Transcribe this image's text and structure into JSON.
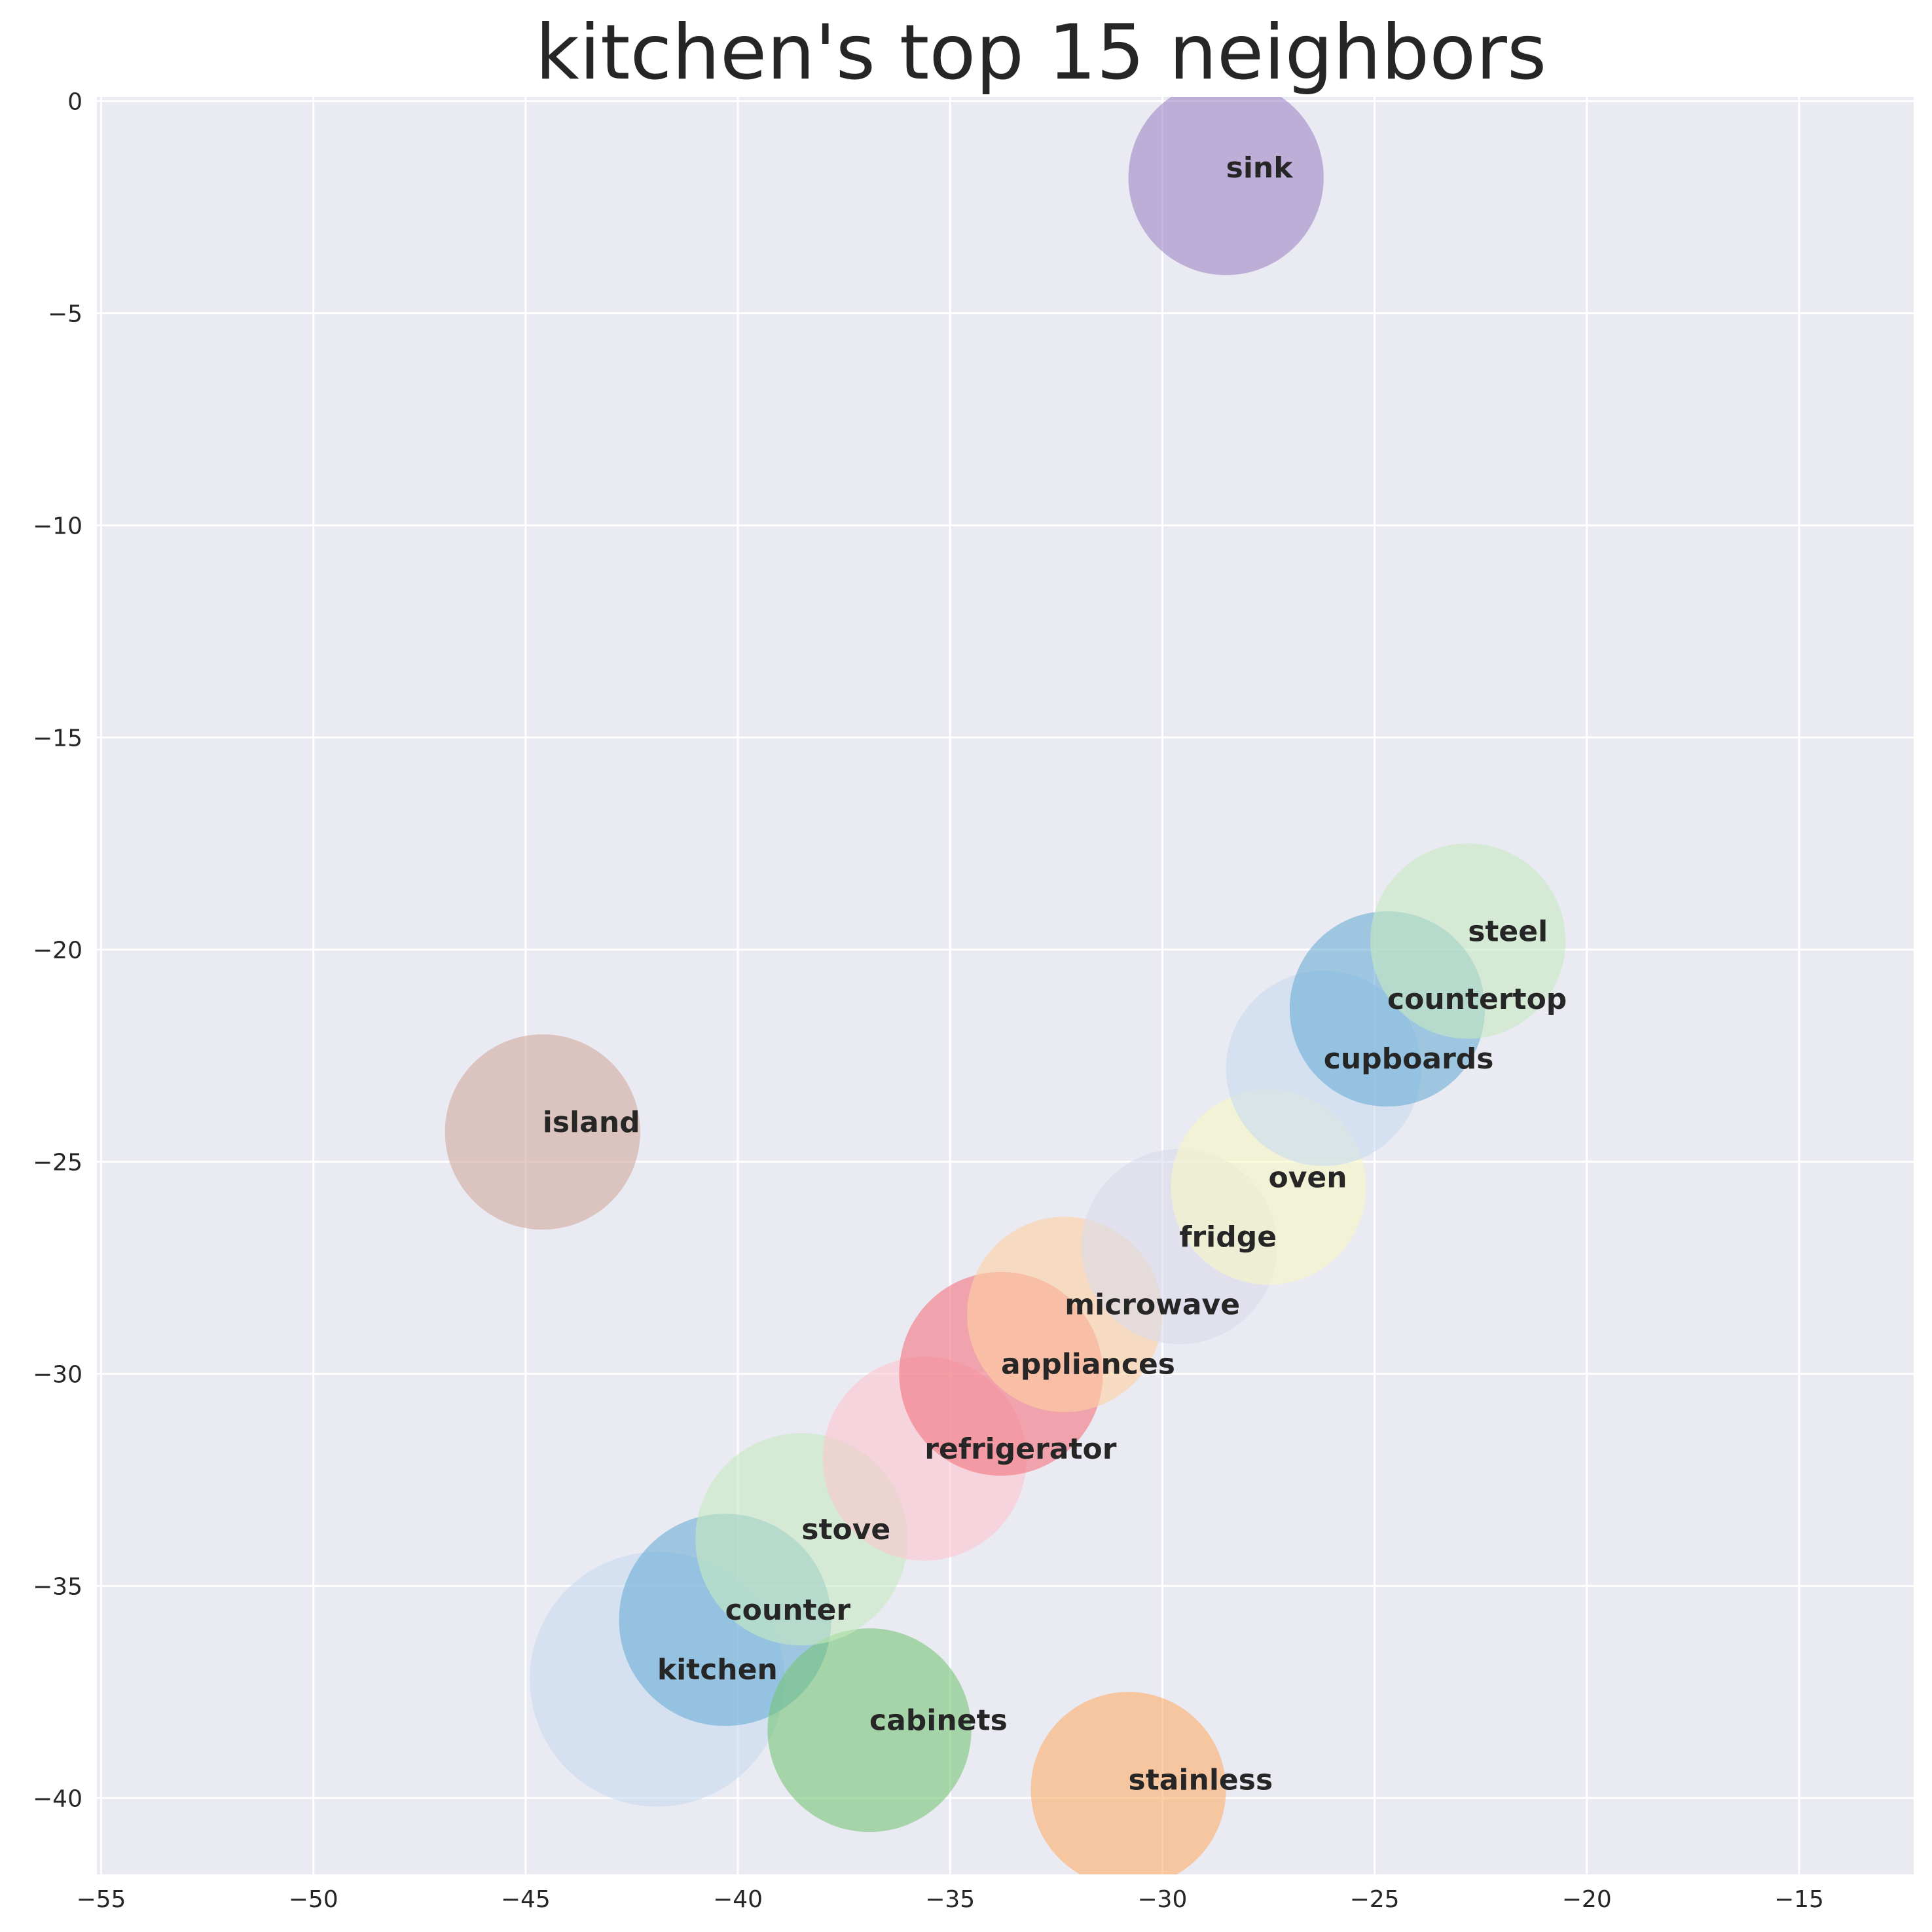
{
  "chart_data": {
    "type": "scatter",
    "title": "kitchen's top 15 neighbors",
    "xlabel": "",
    "ylabel": "",
    "xlim": [
      -55.1,
      -12.3
    ],
    "ylim": [
      -41.8,
      0.1
    ],
    "xticks": [
      -55,
      -50,
      -45,
      -40,
      -35,
      -30,
      -25,
      -20,
      -15
    ],
    "yticks": [
      0,
      -5,
      -10,
      -15,
      -20,
      -25,
      -30,
      -35,
      -40
    ],
    "xtick_labels": [
      "−55",
      "−50",
      "−45",
      "−40",
      "−35",
      "−30",
      "−25",
      "−20",
      "−15"
    ],
    "ytick_labels": [
      "0",
      "−5",
      "−10",
      "−15",
      "−20",
      "−25",
      "−30",
      "−35",
      "−40"
    ],
    "grid": true,
    "legend": "none",
    "background_color": "#eaeaf2",
    "grid_color": "#ffffff",
    "points": [
      {
        "label": "kitchen",
        "x": -41.9,
        "y": -37.2,
        "r": 3.0,
        "color": "#c6dbef"
      },
      {
        "label": "counter",
        "x": -40.3,
        "y": -35.8,
        "r": 2.5,
        "color": "#6baed6"
      },
      {
        "label": "cabinets",
        "x": -36.9,
        "y": -38.4,
        "r": 2.4,
        "color": "#74c476"
      },
      {
        "label": "stove",
        "x": -38.5,
        "y": -33.9,
        "r": 2.5,
        "color": "#c7e9c0"
      },
      {
        "label": "refrigerator",
        "x": -35.6,
        "y": -32.0,
        "r": 2.4,
        "color": "#fcc5cf"
      },
      {
        "label": "appliances",
        "x": -33.8,
        "y": -30.0,
        "r": 2.4,
        "color": "#f4737f"
      },
      {
        "label": "microwave",
        "x": -32.3,
        "y": -28.6,
        "r": 2.3,
        "color": "#fdd0a2"
      },
      {
        "label": "fridge",
        "x": -29.6,
        "y": -27.0,
        "r": 2.3,
        "color": "#dadaeb"
      },
      {
        "label": "oven",
        "x": -27.5,
        "y": -25.6,
        "r": 2.3,
        "color": "#f7f7c4"
      },
      {
        "label": "cupboards",
        "x": -26.2,
        "y": -22.8,
        "r": 2.3,
        "color": "#c6dbef"
      },
      {
        "label": "countertop",
        "x": -24.7,
        "y": -21.4,
        "r": 2.3,
        "color": "#6baed6"
      },
      {
        "label": "steel",
        "x": -22.8,
        "y": -19.8,
        "r": 2.3,
        "color": "#c7e9c0"
      },
      {
        "label": "island",
        "x": -44.6,
        "y": -24.3,
        "r": 2.3,
        "color": "#d1a99c"
      },
      {
        "label": "sink",
        "x": -28.5,
        "y": -1.8,
        "r": 2.3,
        "color": "#9e86c6"
      },
      {
        "label": "stainless",
        "x": -30.8,
        "y": -39.8,
        "r": 2.3,
        "color": "#fdae6b"
      }
    ]
  }
}
